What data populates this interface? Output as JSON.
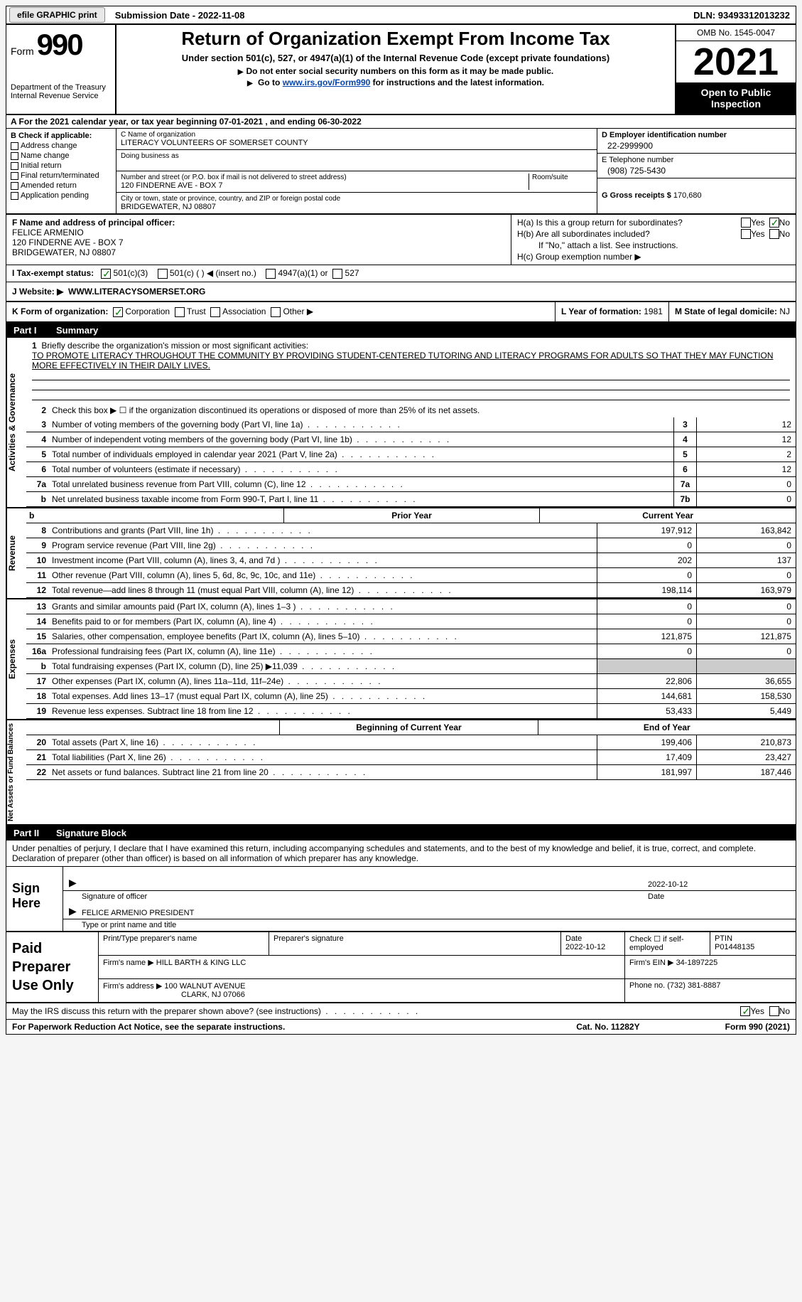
{
  "header_bar": {
    "btn1": "efile GRAPHIC print",
    "sub_date_label": "Submission Date - 2022-11-08",
    "dln": "DLN: 93493312013232"
  },
  "title_block": {
    "form_word": "Form",
    "form_num": "990",
    "dept": "Department of the Treasury",
    "irs": "Internal Revenue Service",
    "main_title": "Return of Organization Exempt From Income Tax",
    "sub_title": "Under section 501(c), 527, or 4947(a)(1) of the Internal Revenue Code (except private foundations)",
    "instr1": "Do not enter social security numbers on this form as it may be made public.",
    "instr2_pre": "Go to ",
    "instr2_link": "www.irs.gov/Form990",
    "instr2_post": " for instructions and the latest information.",
    "omb": "OMB No. 1545-0047",
    "year": "2021",
    "open_pub": "Open to Public Inspection"
  },
  "row_a": {
    "text": "A For the 2021 calendar year, or tax year beginning 07-01-2021   , and ending 06-30-2022"
  },
  "col_b": {
    "header": "B Check if applicable:",
    "items": [
      "Address change",
      "Name change",
      "Initial return",
      "Final return/terminated",
      "Amended return",
      "Application pending"
    ]
  },
  "col_c": {
    "name_label": "C Name of organization",
    "name": "LITERACY VOLUNTEERS OF SOMERSET COUNTY",
    "dba_label": "Doing business as",
    "addr_label": "Number and street (or P.O. box if mail is not delivered to street address)",
    "room_label": "Room/suite",
    "addr": "120 FINDERNE AVE - BOX 7",
    "city_label": "City or town, state or province, country, and ZIP or foreign postal code",
    "city": "BRIDGEWATER, NJ  08807"
  },
  "col_d": {
    "ein_label": "D Employer identification number",
    "ein": "22-2999900",
    "tel_label": "E Telephone number",
    "tel": "(908) 725-5430",
    "gross_label": "G Gross receipts $",
    "gross": "170,680"
  },
  "officer": {
    "label": "F Name and address of principal officer:",
    "name": "FELICE ARMENIO",
    "addr1": "120 FINDERNE AVE - BOX 7",
    "addr2": "BRIDGEWATER, NJ  08807"
  },
  "h_block": {
    "ha": "H(a)  Is this a group return for subordinates?",
    "hb": "H(b)  Are all subordinates included?",
    "hb_note": "If \"No,\" attach a list. See instructions.",
    "hc": "H(c)  Group exemption number ▶",
    "yes": "Yes",
    "no": "No"
  },
  "exempt": {
    "label": "I   Tax-exempt status:",
    "opt1": "501(c)(3)",
    "opt2": "501(c) (  ) ◀ (insert no.)",
    "opt3": "4947(a)(1) or",
    "opt4": "527"
  },
  "website": {
    "label": "J  Website: ▶",
    "val": "WWW.LITERACYSOMERSET.ORG"
  },
  "k_row": {
    "label": "K Form of organization:",
    "opts": [
      "Corporation",
      "Trust",
      "Association",
      "Other ▶"
    ],
    "l_label": "L Year of formation:",
    "l_val": "1981",
    "m_label": "M State of legal domicile:",
    "m_val": "NJ"
  },
  "part1": {
    "num": "Part I",
    "title": "Summary"
  },
  "sections": {
    "activities": "Activities & Governance",
    "revenue": "Revenue",
    "expenses": "Expenses",
    "netassets": "Net Assets or Fund Balances"
  },
  "mission": {
    "num": "1",
    "label": "Briefly describe the organization's mission or most significant activities:",
    "text": "TO PROMOTE LITERACY THROUGHOUT THE COMMUNITY BY PROVIDING STUDENT-CENTERED TUTORING AND LITERACY PROGRAMS FOR ADULTS SO THAT THEY MAY FUNCTION MORE EFFECTIVELY IN THEIR DAILY LIVES."
  },
  "lines_a": [
    {
      "n": "2",
      "t": "Check this box ▶ ☐  if the organization discontinued its operations or disposed of more than 25% of its net assets."
    },
    {
      "n": "3",
      "t": "Number of voting members of the governing body (Part VI, line 1a)",
      "box": "3",
      "v": "12"
    },
    {
      "n": "4",
      "t": "Number of independent voting members of the governing body (Part VI, line 1b)",
      "box": "4",
      "v": "12"
    },
    {
      "n": "5",
      "t": "Total number of individuals employed in calendar year 2021 (Part V, line 2a)",
      "box": "5",
      "v": "2"
    },
    {
      "n": "6",
      "t": "Total number of volunteers (estimate if necessary)",
      "box": "6",
      "v": "12"
    },
    {
      "n": "7a",
      "t": "Total unrelated business revenue from Part VIII, column (C), line 12",
      "box": "7a",
      "v": "0"
    },
    {
      "n": "b",
      "t": "Net unrelated business taxable income from Form 990-T, Part I, line 11",
      "box": "7b",
      "v": "0"
    }
  ],
  "col_headers": {
    "prior": "Prior Year",
    "current": "Current Year",
    "beg": "Beginning of Current Year",
    "end": "End of Year"
  },
  "revenue_lines": [
    {
      "n": "8",
      "t": "Contributions and grants (Part VIII, line 1h)",
      "p": "197,912",
      "c": "163,842"
    },
    {
      "n": "9",
      "t": "Program service revenue (Part VIII, line 2g)",
      "p": "0",
      "c": "0"
    },
    {
      "n": "10",
      "t": "Investment income (Part VIII, column (A), lines 3, 4, and 7d )",
      "p": "202",
      "c": "137"
    },
    {
      "n": "11",
      "t": "Other revenue (Part VIII, column (A), lines 5, 6d, 8c, 9c, 10c, and 11e)",
      "p": "0",
      "c": "0"
    },
    {
      "n": "12",
      "t": "Total revenue—add lines 8 through 11 (must equal Part VIII, column (A), line 12)",
      "p": "198,114",
      "c": "163,979"
    }
  ],
  "expense_lines": [
    {
      "n": "13",
      "t": "Grants and similar amounts paid (Part IX, column (A), lines 1–3 )",
      "p": "0",
      "c": "0"
    },
    {
      "n": "14",
      "t": "Benefits paid to or for members (Part IX, column (A), line 4)",
      "p": "0",
      "c": "0"
    },
    {
      "n": "15",
      "t": "Salaries, other compensation, employee benefits (Part IX, column (A), lines 5–10)",
      "p": "121,875",
      "c": "121,875"
    },
    {
      "n": "16a",
      "t": "Professional fundraising fees (Part IX, column (A), line 11e)",
      "p": "0",
      "c": "0"
    },
    {
      "n": "b",
      "t": "Total fundraising expenses (Part IX, column (D), line 25) ▶11,039",
      "p": "",
      "c": "",
      "shaded": true
    },
    {
      "n": "17",
      "t": "Other expenses (Part IX, column (A), lines 11a–11d, 11f–24e)",
      "p": "22,806",
      "c": "36,655"
    },
    {
      "n": "18",
      "t": "Total expenses. Add lines 13–17 (must equal Part IX, column (A), line 25)",
      "p": "144,681",
      "c": "158,530"
    },
    {
      "n": "19",
      "t": "Revenue less expenses. Subtract line 18 from line 12",
      "p": "53,433",
      "c": "5,449"
    }
  ],
  "net_lines": [
    {
      "n": "20",
      "t": "Total assets (Part X, line 16)",
      "p": "199,406",
      "c": "210,873"
    },
    {
      "n": "21",
      "t": "Total liabilities (Part X, line 26)",
      "p": "17,409",
      "c": "23,427"
    },
    {
      "n": "22",
      "t": "Net assets or fund balances. Subtract line 21 from line 20",
      "p": "181,997",
      "c": "187,446"
    }
  ],
  "part2": {
    "num": "Part II",
    "title": "Signature Block"
  },
  "penalty": "Under penalties of perjury, I declare that I have examined this return, including accompanying schedules and statements, and to the best of my knowledge and belief, it is true, correct, and complete. Declaration of preparer (other than officer) is based on all information of which preparer has any knowledge.",
  "sign": {
    "label": "Sign Here",
    "sig_label": "Signature of officer",
    "date_label": "Date",
    "date": "2022-10-12",
    "name": "FELICE ARMENIO  PRESIDENT",
    "name_label": "Type or print name and title"
  },
  "prep": {
    "label": "Paid Preparer Use Only",
    "h1": "Print/Type preparer's name",
    "h2": "Preparer's signature",
    "h3": "Date",
    "h3v": "2022-10-12",
    "h4": "Check ☐ if self-employed",
    "h5": "PTIN",
    "h5v": "P01448135",
    "firm_label": "Firm's name      ▶",
    "firm": "HILL BARTH & KING LLC",
    "ein_label": "Firm's EIN ▶",
    "ein": "34-1897225",
    "addr_label": "Firm's address ▶",
    "addr1": "100 WALNUT AVENUE",
    "addr2": "CLARK, NJ  07066",
    "phone_label": "Phone no.",
    "phone": "(732) 381-8887"
  },
  "discuss": {
    "text": "May the IRS discuss this return with the preparer shown above? (see instructions)",
    "yes": "Yes",
    "no": "No"
  },
  "footer": {
    "left": "For Paperwork Reduction Act Notice, see the separate instructions.",
    "mid": "Cat. No. 11282Y",
    "right": "Form 990 (2021)"
  },
  "colors": {
    "black": "#000000",
    "link": "#0645ad",
    "check": "#008000",
    "shade": "#cccccc"
  }
}
